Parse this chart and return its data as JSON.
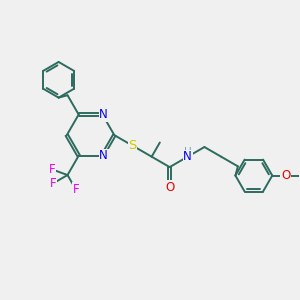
{
  "bg_color": "#f0f0f0",
  "bond_color": "#2d6b5e",
  "n_color": "#0000ee",
  "s_color": "#cccc00",
  "o_color": "#ee0000",
  "f_color": "#ee00ee",
  "h_color": "#6aacac",
  "line_width": 1.4,
  "font_size": 8.5,
  "fig_w": 3.0,
  "fig_h": 3.0,
  "dpi": 100,
  "xlim": [
    0,
    10
  ],
  "ylim": [
    0,
    10
  ]
}
